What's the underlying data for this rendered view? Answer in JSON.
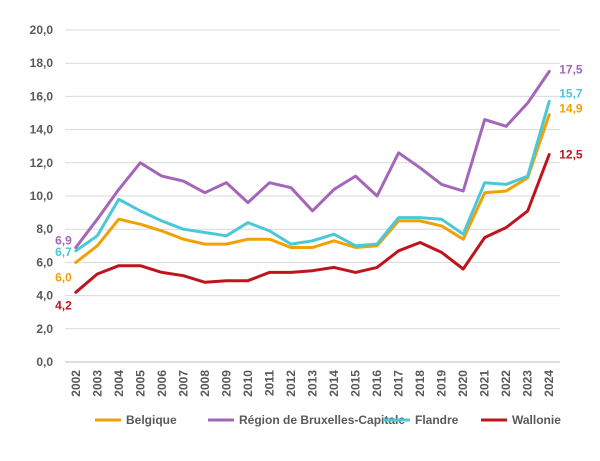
{
  "chart_data": {
    "type": "line",
    "title": "",
    "xlabel": "",
    "ylabel": "",
    "ylim": [
      0,
      20
    ],
    "y_ticks": [
      "0,0",
      "2,0",
      "4,0",
      "6,0",
      "8,0",
      "10,0",
      "12,0",
      "14,0",
      "16,0",
      "18,0",
      "20,0"
    ],
    "grid": "horizontal",
    "legend_position": "bottom",
    "x": [
      "2002",
      "2003",
      "2004",
      "2005",
      "2006",
      "2007",
      "2008",
      "2009",
      "2010",
      "2011",
      "2012",
      "2013",
      "2014",
      "2015",
      "2016",
      "2017",
      "2018",
      "2019",
      "2020",
      "2021",
      "2022",
      "2023",
      "2024"
    ],
    "series": [
      {
        "name": "Belgique",
        "color": "#F2A104",
        "values": [
          6.0,
          7.0,
          8.6,
          8.3,
          7.9,
          7.4,
          7.1,
          7.1,
          7.4,
          7.4,
          6.9,
          6.9,
          7.3,
          6.9,
          7.0,
          8.5,
          8.5,
          8.2,
          7.4,
          10.2,
          10.3,
          11.1,
          14.9
        ],
        "first_label": "6,0",
        "last_label": "14,9"
      },
      {
        "name": "Région de Bruxelles-Capitale",
        "color": "#A366B8",
        "values": [
          6.9,
          8.6,
          10.4,
          12.0,
          11.2,
          10.9,
          10.2,
          10.8,
          9.6,
          10.8,
          10.5,
          9.1,
          10.4,
          11.2,
          10.0,
          12.6,
          11.7,
          10.7,
          10.3,
          14.6,
          14.2,
          15.6,
          17.5
        ],
        "first_label": "6,9",
        "last_label": "17,5"
      },
      {
        "name": "Flandre",
        "color": "#4BC8D8",
        "values": [
          6.7,
          7.6,
          9.8,
          9.1,
          8.5,
          8.0,
          7.8,
          7.6,
          8.4,
          7.9,
          7.1,
          7.3,
          7.7,
          7.0,
          7.1,
          8.7,
          8.7,
          8.6,
          7.7,
          10.8,
          10.7,
          11.2,
          15.7
        ],
        "first_label": "6,7",
        "last_label": "15,7"
      },
      {
        "name": "Wallonie",
        "color": "#C0141C",
        "values": [
          4.2,
          5.3,
          5.8,
          5.8,
          5.4,
          5.2,
          4.8,
          4.9,
          4.9,
          5.4,
          5.4,
          5.5,
          5.7,
          5.4,
          5.7,
          6.7,
          7.2,
          6.6,
          5.6,
          7.5,
          8.1,
          9.1,
          12.5
        ],
        "first_label": "4,2",
        "last_label": "12,5"
      }
    ]
  }
}
